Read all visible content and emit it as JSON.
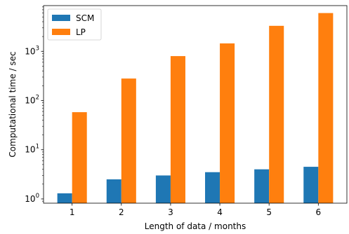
{
  "chart_data": {
    "type": "bar",
    "categories": [
      "1",
      "2",
      "3",
      "4",
      "5",
      "6"
    ],
    "series": [
      {
        "name": "SCM",
        "color": "#1f77b4",
        "values": [
          1.3,
          2.5,
          3.0,
          3.5,
          4.0,
          4.5
        ]
      },
      {
        "name": "LP",
        "color": "#ff7f0e",
        "values": [
          58,
          280,
          800,
          1450,
          3300,
          6000
        ]
      }
    ],
    "xlabel": "Length of data / months",
    "ylabel": "Computational time / sec",
    "yscale": "log",
    "ylim": [
      0.82,
      8500
    ],
    "y_ticks": [
      {
        "value": 1,
        "base": "10",
        "exp": "0"
      },
      {
        "value": 10,
        "base": "10",
        "exp": "1"
      },
      {
        "value": 100,
        "base": "10",
        "exp": "2"
      },
      {
        "value": 1000,
        "base": "10",
        "exp": "3"
      }
    ],
    "grid": false,
    "legend_position": "top-left"
  }
}
